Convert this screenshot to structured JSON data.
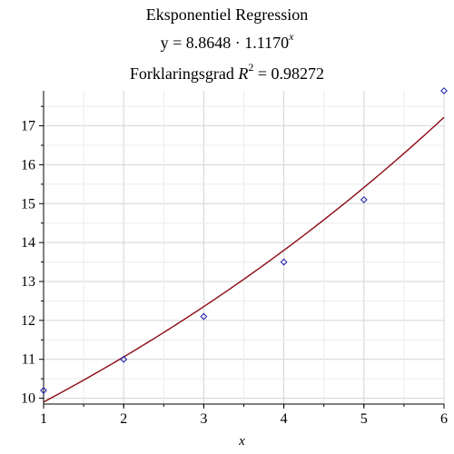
{
  "chart_data": {
    "type": "scatter",
    "title": "Eksponentiel Regression",
    "equation": {
      "prefix": "y = 8.8648 · 1.1170",
      "exponent": "x"
    },
    "r_squared": {
      "prefix": "Forklaringsgrad ",
      "symbol": "R",
      "power": "2",
      "suffix": " = 0.98272"
    },
    "xlabel": "x",
    "ylabel": "",
    "xlim": [
      1,
      6
    ],
    "ylim": [
      9.85,
      17.9
    ],
    "x_ticks": [
      1,
      2,
      3,
      4,
      5,
      6
    ],
    "y_ticks": [
      10,
      11,
      12,
      13,
      14,
      15,
      16,
      17
    ],
    "grid": true,
    "points": [
      {
        "x": 1,
        "y": 10.2
      },
      {
        "x": 2,
        "y": 11.0
      },
      {
        "x": 3,
        "y": 12.1
      },
      {
        "x": 4,
        "y": 13.5
      },
      {
        "x": 5,
        "y": 15.1
      },
      {
        "x": 6,
        "y": 17.9
      }
    ],
    "fit": {
      "a": 8.8648,
      "b": 1.117
    },
    "colors": {
      "points": "#1a1aa8",
      "curve": "#8b0a14",
      "grid": "#d4d4d4",
      "axis": "#000000"
    }
  }
}
